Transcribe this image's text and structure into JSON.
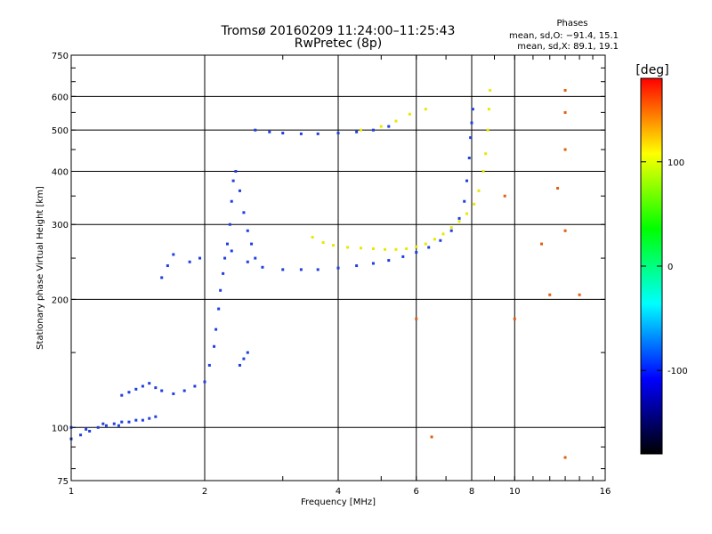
{
  "chart_data": {
    "type": "scatter",
    "title": "Tromsø 20160209 11:24:00–11:25:43",
    "subtitle": "RwPretec (8p)",
    "xlabel": "Frequency [MHz]",
    "ylabel": "Stationary phase Virtual Height [km]",
    "x_scale": "log",
    "y_scale": "log",
    "xlim": [
      1,
      16
    ],
    "ylim": [
      75,
      750
    ],
    "x_ticks": [
      1,
      2,
      4,
      6,
      8,
      10,
      16
    ],
    "y_ticks": [
      75,
      100,
      200,
      300,
      400,
      500,
      600,
      750
    ],
    "grid": true,
    "phase_box": {
      "title": "Phases",
      "line_o": "mean, sd,O: −91.4, 15.1",
      "line_x": "mean, sd,X:  89.1, 19.1"
    },
    "colorbar": {
      "label": "[deg]",
      "range": [
        -180,
        180
      ],
      "ticks": [
        100,
        0,
        -100
      ],
      "colors": [
        "#ff0000",
        "#ffff00",
        "#00ff00",
        "#00ffff",
        "#0000ff",
        "#000000"
      ]
    },
    "series": [
      {
        "name": "O",
        "color": "#1f3fe0",
        "points": [
          [
            1.0,
            94
          ],
          [
            1.05,
            96
          ],
          [
            1.1,
            98
          ],
          [
            1.15,
            100
          ],
          [
            1.2,
            101
          ],
          [
            1.25,
            102
          ],
          [
            1.3,
            103
          ],
          [
            1.35,
            103
          ],
          [
            1.4,
            104
          ],
          [
            1.45,
            104
          ],
          [
            1.5,
            105
          ],
          [
            1.55,
            106
          ],
          [
            1.3,
            119
          ],
          [
            1.35,
            121
          ],
          [
            1.4,
            123
          ],
          [
            1.45,
            125
          ],
          [
            1.5,
            127
          ],
          [
            1.55,
            124
          ],
          [
            1.6,
            122
          ],
          [
            1.7,
            120
          ],
          [
            1.8,
            122
          ],
          [
            1.9,
            125
          ],
          [
            2.0,
            128
          ],
          [
            2.05,
            140
          ],
          [
            2.1,
            155
          ],
          [
            2.12,
            170
          ],
          [
            2.15,
            190
          ],
          [
            2.17,
            210
          ],
          [
            2.2,
            230
          ],
          [
            2.22,
            250
          ],
          [
            2.25,
            270
          ],
          [
            2.28,
            300
          ],
          [
            2.3,
            340
          ],
          [
            2.32,
            380
          ],
          [
            2.35,
            400
          ],
          [
            2.4,
            360
          ],
          [
            2.45,
            320
          ],
          [
            2.5,
            290
          ],
          [
            2.55,
            270
          ],
          [
            2.6,
            250
          ],
          [
            2.4,
            140
          ],
          [
            2.45,
            145
          ],
          [
            2.5,
            150
          ],
          [
            1.6,
            225
          ],
          [
            1.65,
            240
          ],
          [
            1.7,
            255
          ],
          [
            1.85,
            245
          ],
          [
            1.95,
            250
          ],
          [
            2.3,
            260
          ],
          [
            2.5,
            245
          ],
          [
            2.7,
            238
          ],
          [
            3.0,
            235
          ],
          [
            3.3,
            235
          ],
          [
            3.6,
            235
          ],
          [
            4.0,
            237
          ],
          [
            4.4,
            240
          ],
          [
            4.8,
            243
          ],
          [
            5.2,
            247
          ],
          [
            5.6,
            252
          ],
          [
            6.0,
            258
          ],
          [
            6.4,
            265
          ],
          [
            6.8,
            275
          ],
          [
            7.2,
            290
          ],
          [
            7.5,
            310
          ],
          [
            7.7,
            340
          ],
          [
            7.8,
            380
          ],
          [
            7.9,
            430
          ],
          [
            7.95,
            480
          ],
          [
            8.0,
            520
          ],
          [
            8.05,
            560
          ],
          [
            2.6,
            500
          ],
          [
            2.8,
            495
          ],
          [
            3.0,
            492
          ],
          [
            3.3,
            490
          ],
          [
            3.6,
            490
          ],
          [
            4.0,
            492
          ],
          [
            4.4,
            495
          ],
          [
            4.8,
            500
          ],
          [
            5.2,
            510
          ],
          [
            1.0,
            100
          ],
          [
            1.08,
            99
          ],
          [
            1.18,
            102
          ],
          [
            1.28,
            101
          ]
        ]
      },
      {
        "name": "X",
        "color": "#e8e800",
        "points": [
          [
            3.5,
            280
          ],
          [
            3.7,
            272
          ],
          [
            3.9,
            268
          ],
          [
            4.2,
            265
          ],
          [
            4.5,
            264
          ],
          [
            4.8,
            263
          ],
          [
            5.1,
            262
          ],
          [
            5.4,
            262
          ],
          [
            5.7,
            263
          ],
          [
            6.0,
            266
          ],
          [
            6.3,
            270
          ],
          [
            6.6,
            277
          ],
          [
            6.9,
            285
          ],
          [
            7.2,
            295
          ],
          [
            7.5,
            305
          ],
          [
            7.8,
            318
          ],
          [
            8.1,
            335
          ],
          [
            8.3,
            360
          ],
          [
            8.5,
            400
          ],
          [
            8.6,
            440
          ],
          [
            8.7,
            500
          ],
          [
            8.75,
            560
          ],
          [
            8.8,
            620
          ],
          [
            4.5,
            500
          ],
          [
            5.0,
            510
          ],
          [
            5.4,
            525
          ],
          [
            5.8,
            545
          ],
          [
            6.3,
            560
          ]
        ]
      },
      {
        "name": "scatter",
        "color": "#e06010",
        "points": [
          [
            13,
            620
          ],
          [
            13,
            550
          ],
          [
            13,
            450
          ],
          [
            12.5,
            365
          ],
          [
            13,
            290
          ],
          [
            12,
            205
          ],
          [
            14,
            205
          ],
          [
            10,
            180
          ],
          [
            6,
            180
          ],
          [
            6.5,
            95
          ],
          [
            13,
            85
          ],
          [
            11.5,
            270
          ],
          [
            9.5,
            350
          ]
        ]
      }
    ]
  }
}
